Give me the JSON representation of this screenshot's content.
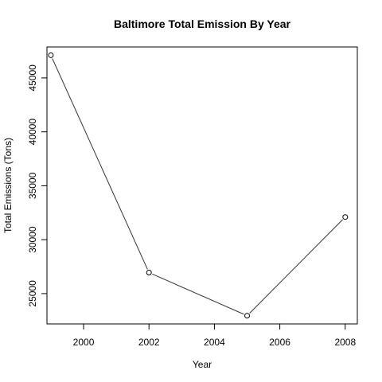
{
  "chart_data": {
    "type": "line",
    "title": "Baltimore Total Emission By Year",
    "xlabel": "Year",
    "ylabel": "Total Emissions (Tons)",
    "x": [
      1999,
      2002,
      2005,
      2008
    ],
    "series": [
      {
        "values": [
          47100,
          26950,
          22950,
          32100
        ]
      }
    ],
    "xlim": [
      1998.88,
      2008.37
    ],
    "ylim": [
      22190,
      47870
    ],
    "xticks": [
      2000,
      2002,
      2004,
      2006,
      2008
    ],
    "xtick_labels": [
      "2000",
      "2002",
      "2004",
      "2006",
      "2008"
    ],
    "yticks": [
      25000,
      30000,
      35000,
      40000,
      45000
    ],
    "ytick_labels": [
      "25000",
      "30000",
      "35000",
      "40000",
      "45000"
    ],
    "grid": false,
    "legend": false,
    "markers": "open-circle",
    "line_color": "#333333"
  }
}
